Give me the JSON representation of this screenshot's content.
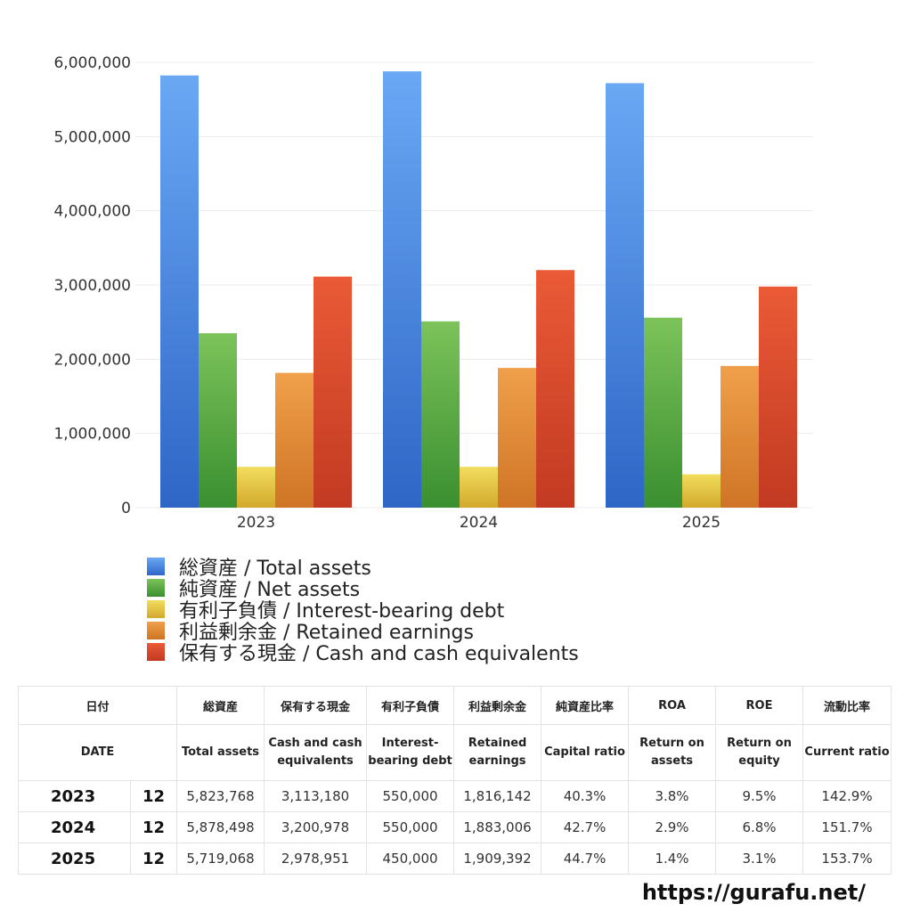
{
  "chart_data": {
    "type": "bar",
    "categories": [
      "2023",
      "2024",
      "2025"
    ],
    "series": [
      {
        "name": "総資産 / Total assets",
        "values": [
          5823768,
          5878498,
          5719068
        ],
        "color": "#3f7fdc"
      },
      {
        "name": "純資産 / Net assets",
        "values": [
          2350000,
          2510000,
          2560000
        ],
        "color": "#4ea53f"
      },
      {
        "name": "有利子負債 / Interest-bearing debt",
        "values": [
          550000,
          550000,
          450000
        ],
        "color": "#e3c23a"
      },
      {
        "name": "利益剰余金 / Retained earnings",
        "values": [
          1816142,
          1883006,
          1909392
        ],
        "color": "#e08a35"
      },
      {
        "name": "保有する現金 /  Cash and cash equivalents",
        "values": [
          3113180,
          3200978,
          2978951
        ],
        "color": "#d9482a"
      }
    ],
    "ylim": [
      0,
      6000000
    ],
    "yticks": [
      "0",
      "1,000,000",
      "2,000,000",
      "3,000,000",
      "4,000,000",
      "5,000,000",
      "6,000,000"
    ],
    "grid": true,
    "legend_position": "bottom"
  },
  "table": {
    "headers_ja": [
      "日付",
      "総資産",
      "保有する現金",
      "有利子負債",
      "利益剰余金",
      "純資産比率",
      "ROA",
      "ROE",
      "流動比率"
    ],
    "headers_en": [
      "DATE",
      "Total assets",
      "Cash and cash equivalents",
      "Interest-bearing debt",
      "Retained earnings",
      "Capital ratio",
      "Return on assets",
      "Return on equity",
      "Current ratio"
    ],
    "rows": [
      {
        "year": "2023",
        "month": "12",
        "total_assets": "5,823,768",
        "cash": "3,113,180",
        "debt": "550,000",
        "retained": "1,816,142",
        "capital_ratio": "40.3%",
        "roa": "3.8%",
        "roe": "9.5%",
        "current_ratio": "142.9%"
      },
      {
        "year": "2024",
        "month": "12",
        "total_assets": "5,878,498",
        "cash": "3,200,978",
        "debt": "550,000",
        "retained": "1,883,006",
        "capital_ratio": "42.7%",
        "roa": "2.9%",
        "roe": "6.8%",
        "current_ratio": "151.7%"
      },
      {
        "year": "2025",
        "month": "12",
        "total_assets": "5,719,068",
        "cash": "2,978,951",
        "debt": "450,000",
        "retained": "1,909,392",
        "capital_ratio": "44.7%",
        "roa": "1.4%",
        "roe": "3.1%",
        "current_ratio": "153.7%"
      }
    ]
  },
  "watermark": "https://gurafu.net/"
}
